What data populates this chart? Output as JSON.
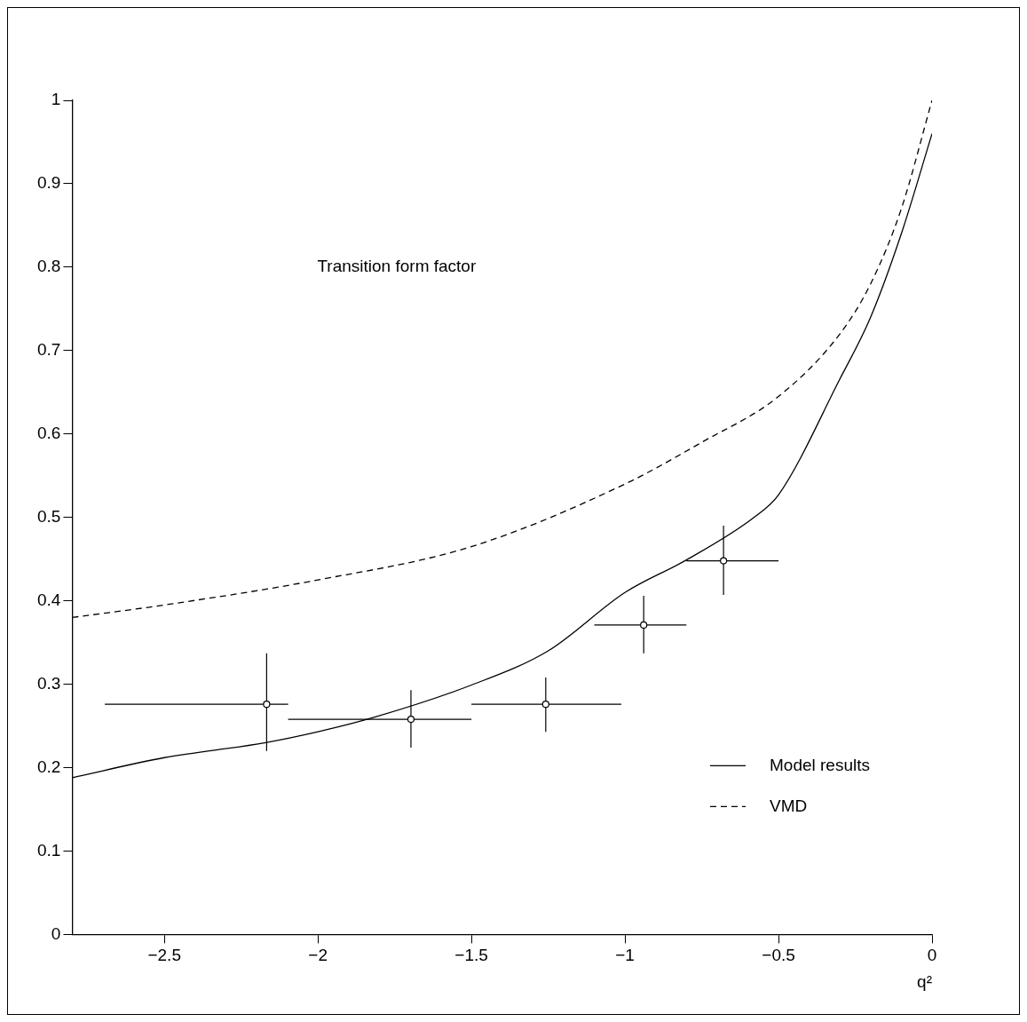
{
  "chart_data": {
    "type": "line",
    "annotations": [
      "Transition form factor"
    ],
    "xlabel": "q²",
    "xlim": [
      -2.8,
      0
    ],
    "xticks": [
      -2.5,
      -2,
      -1.5,
      -1,
      -0.5,
      0
    ],
    "ylim": [
      0,
      1
    ],
    "yticks": [
      0,
      0.1,
      0.2,
      0.3,
      0.4,
      0.5,
      0.6,
      0.7,
      0.8,
      0.9,
      1
    ],
    "grid": false,
    "legend": "bottom right",
    "series": [
      {
        "name": "Model results",
        "color": "#000000",
        "line_style": "solid",
        "marker": "none",
        "x": [
          -2.8,
          -2.5,
          -2.17,
          -2.0,
          -1.82,
          -1.5,
          -1.25,
          -1.0,
          -0.8,
          -0.58,
          -0.5,
          -0.3,
          -0.2,
          -0.1,
          0
        ],
        "values": [
          0.188,
          0.212,
          0.23,
          0.243,
          0.26,
          0.299,
          0.34,
          0.41,
          0.449,
          0.5,
          0.527,
          0.666,
          0.74,
          0.84,
          0.96
        ]
      },
      {
        "name": "VMD",
        "color": "#000000",
        "line_style": "dashed",
        "marker": "none",
        "x": [
          -2.8,
          -2.5,
          -2.0,
          -1.5,
          -1.0,
          -0.75,
          -0.5,
          -0.3,
          -0.2,
          -0.1,
          0
        ],
        "values": [
          0.38,
          0.395,
          0.425,
          0.465,
          0.54,
          0.59,
          0.645,
          0.72,
          0.78,
          0.87,
          1.0
        ]
      },
      {
        "type": "scatter",
        "color": "#000000",
        "marker": "circle",
        "x": [
          -2.167,
          -1.697,
          -1.258,
          -0.939,
          -0.679
        ],
        "values": [
          0.276,
          0.258,
          0.276,
          0.371,
          0.448
        ],
        "errors": [
          [
            0.22,
            0.337
          ],
          [
            0.224,
            0.293
          ],
          [
            0.243,
            0.308
          ],
          [
            0.337,
            0.406
          ],
          [
            0.407,
            0.49
          ]
        ],
        "xerrors": [
          [
            -2.694,
            -2.097
          ],
          [
            -2.097,
            -1.5
          ],
          [
            -1.5,
            -1.012
          ],
          [
            -1.1,
            -0.8
          ],
          [
            -0.8,
            -0.5
          ]
        ]
      }
    ]
  }
}
